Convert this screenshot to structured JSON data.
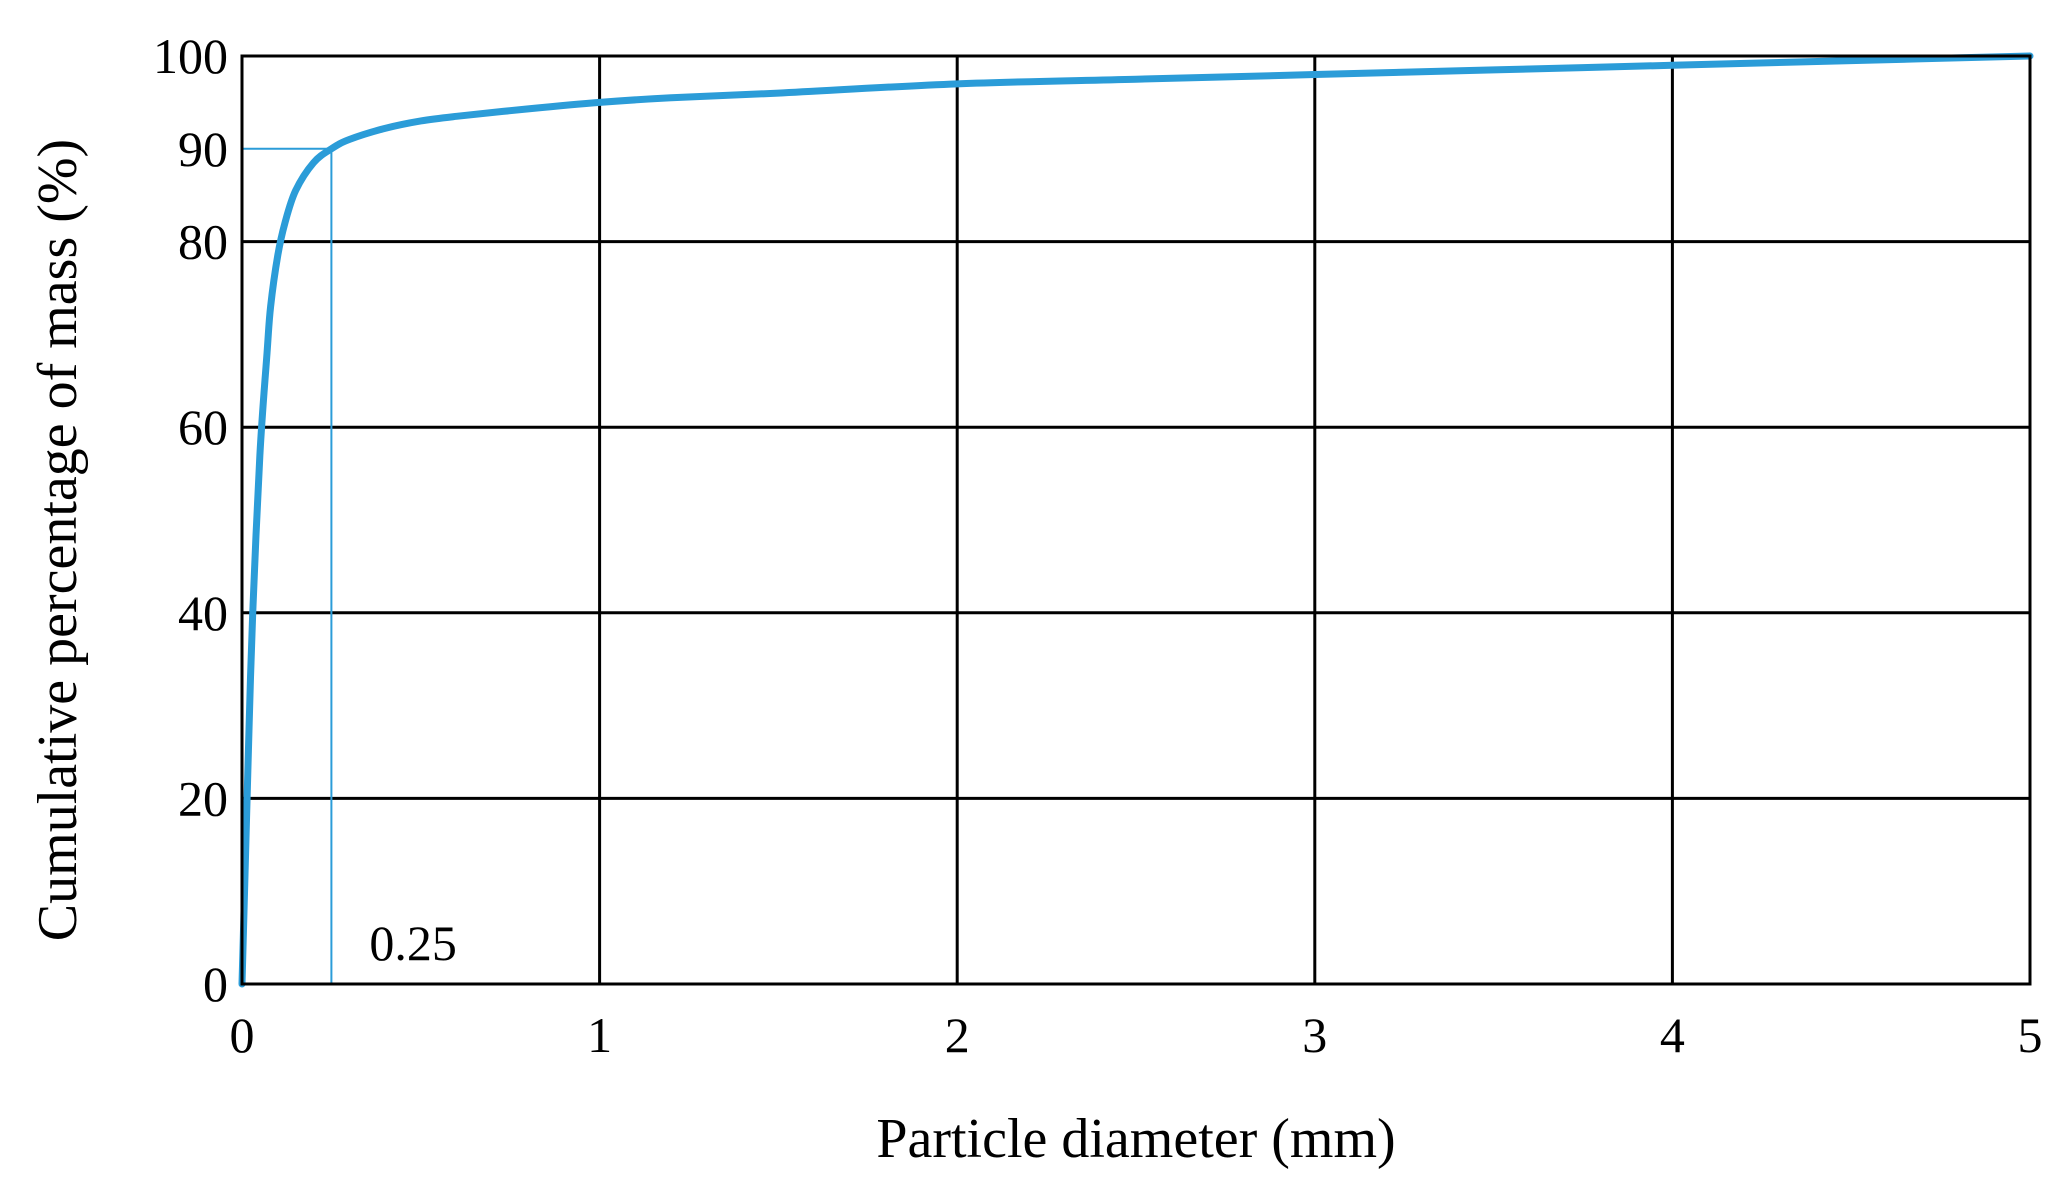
{
  "chart_data": {
    "type": "line",
    "xlabel": "Particle diameter (mm)",
    "ylabel": "Cumulative percentage of mass (%)",
    "xlim": [
      0,
      5
    ],
    "ylim": [
      0,
      100
    ],
    "x_ticks": [
      0,
      1,
      2,
      3,
      4,
      5
    ],
    "x_tick_labels": [
      "0",
      "1",
      "2",
      "3",
      "4",
      "5"
    ],
    "y_ticks": [
      0,
      20,
      40,
      60,
      80,
      100
    ],
    "y_tick_labels": [
      "0",
      "20",
      "40",
      "60",
      "80",
      "100"
    ],
    "grid": true,
    "line_color": "#2b9cd8",
    "series": [
      {
        "x": [
          0,
          0.01,
          0.02,
          0.03,
          0.05,
          0.07,
          0.08,
          0.1,
          0.12,
          0.15,
          0.2,
          0.25,
          0.3,
          0.4,
          0.5,
          0.6,
          0.8,
          1.0,
          1.2,
          1.5,
          2.0,
          2.5,
          3.0,
          3.5,
          4.0,
          4.5,
          5.0
        ],
        "y": [
          0,
          14,
          28,
          40,
          57,
          68,
          73,
          78.5,
          82,
          85.5,
          88.5,
          90,
          91,
          92.2,
          93,
          93.5,
          94.3,
          95,
          95.5,
          96,
          97,
          97.5,
          98,
          98.5,
          99,
          99.5,
          100
        ]
      }
    ],
    "annotations": [
      {
        "label": "0.25",
        "x": 0.25,
        "y": 90
      },
      {
        "label": "90",
        "x": 0.25,
        "y": 90
      }
    ]
  }
}
